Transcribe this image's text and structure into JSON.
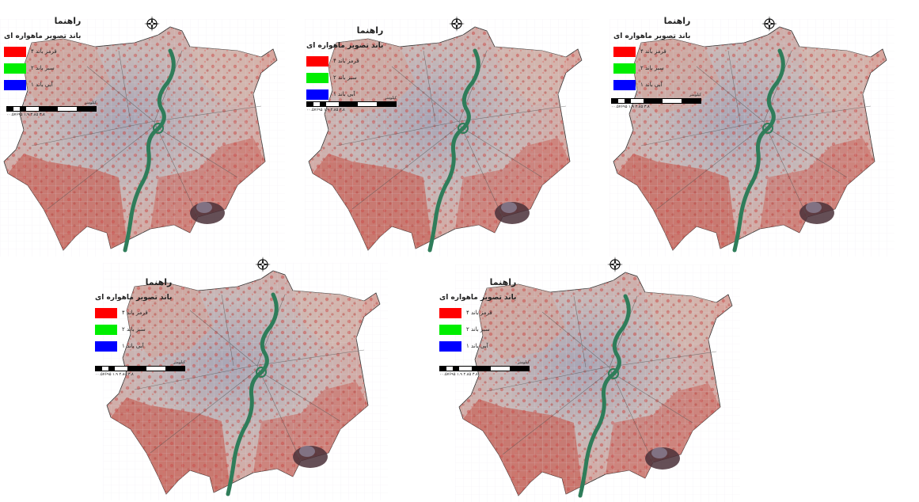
{
  "legend": {
    "title": "راهنما",
    "subtitle": "باند تصویر ماهواره ای",
    "items": [
      {
        "label": "قرمز باند ۴",
        "color": "#ff0000"
      },
      {
        "label": "سبز باند ۲",
        "color": "#00ee00"
      },
      {
        "label": "آبی باند ۱",
        "color": "#0000ff"
      }
    ]
  },
  "scalebar": {
    "unit": "کیلومتر",
    "ticks": "۰۰.۵۷۶۹۵ ۱.۹ ۲.۸۵ ۳.۸"
  },
  "compass": {
    "icon": "north-arrow-icon"
  },
  "colors": {
    "river": "#2f7d5a",
    "urban": "#b9b0b8",
    "vegetation": "#c4605a",
    "bare": "#d9cfc2",
    "industrial": "#4a3038"
  },
  "panels": [
    {
      "id": "map-1"
    },
    {
      "id": "map-2"
    },
    {
      "id": "map-3"
    },
    {
      "id": "map-4"
    },
    {
      "id": "map-5"
    }
  ]
}
